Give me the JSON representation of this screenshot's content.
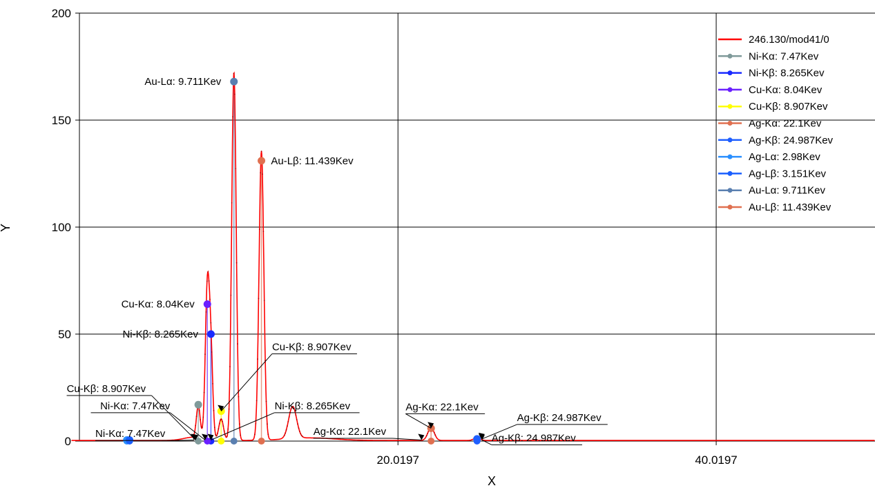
{
  "chart_data": {
    "type": "line",
    "xlabel": "X",
    "ylabel": "Y",
    "xlim": [
      0,
      50
    ],
    "ylim": [
      0,
      200
    ],
    "x_ticks": [
      {
        "value": 20.0197,
        "label": "20.0197"
      },
      {
        "value": 40.0197,
        "label": "40.0197"
      }
    ],
    "y_ticks": [
      {
        "value": 0,
        "label": "0"
      },
      {
        "value": 50,
        "label": "50"
      },
      {
        "value": 100,
        "label": "100"
      },
      {
        "value": 150,
        "label": "150"
      },
      {
        "value": 200,
        "label": "200"
      }
    ],
    "grid": true,
    "legend_position": "top-right",
    "spectrum": {
      "name": "246.130/mod41/0",
      "color": "#ff0000",
      "baseline": 0.3,
      "peaks": [
        {
          "center": 7.15,
          "height": 1.5,
          "width": 0.6
        },
        {
          "center": 7.47,
          "height": 15,
          "width": 0.12
        },
        {
          "center": 8.04,
          "height": 70,
          "width": 0.13
        },
        {
          "center": 8.265,
          "height": 38,
          "width": 0.12
        },
        {
          "center": 8.907,
          "height": 10,
          "width": 0.15
        },
        {
          "center": 9.711,
          "height": 172,
          "width": 0.14
        },
        {
          "center": 11.439,
          "height": 135,
          "width": 0.15
        },
        {
          "center": 13.4,
          "height": 15,
          "width": 0.25
        },
        {
          "center": 14.5,
          "height": 1.2,
          "width": 1.5
        },
        {
          "center": 22.1,
          "height": 6,
          "width": 0.2
        },
        {
          "center": 24.987,
          "height": 1.2,
          "width": 0.2
        }
      ]
    },
    "series": [
      {
        "name": "246.130/mod41/0",
        "color": "#ff0000",
        "marker": false
      },
      {
        "name": "Ni-Kα: 7.47Kev",
        "color": "#7f9a9a",
        "marker": true
      },
      {
        "name": "Ni-Kβ: 8.265Kev",
        "color": "#1a2aff",
        "marker": true
      },
      {
        "name": "Cu-Kα: 8.04Kev",
        "color": "#6a1fff",
        "marker": true
      },
      {
        "name": "Cu-Kβ: 8.907Kev",
        "color": "#ffff00",
        "marker": true
      },
      {
        "name": "Ag-Kα: 22.1Kev",
        "color": "#e07050",
        "marker": true
      },
      {
        "name": "Ag-Kβ: 24.987Kev",
        "color": "#1f5fff",
        "marker": true
      },
      {
        "name": "Ag-Lα: 2.98Kev",
        "color": "#2a8fff",
        "marker": true
      },
      {
        "name": "Ag-Lβ: 3.151Kev",
        "color": "#1a5fff",
        "marker": true
      },
      {
        "name": "Au-Lα: 9.711Kev",
        "color": "#5a7fb0",
        "marker": true
      },
      {
        "name": "Au-Lβ: 11.439Kev",
        "color": "#e07050",
        "marker": true
      }
    ],
    "element_lines": [
      {
        "name": "Ni-Kα",
        "energy": 7.47,
        "y": 17,
        "color": "#7f9a9a"
      },
      {
        "name": "Ni-Kβ",
        "energy": 8.265,
        "y": 50,
        "color": "#1a2aff"
      },
      {
        "name": "Cu-Kα",
        "energy": 8.04,
        "y": 64,
        "color": "#6a1fff"
      },
      {
        "name": "Cu-Kβ",
        "energy": 8.907,
        "y": 14,
        "color": "#ffff00"
      },
      {
        "name": "Ag-Kα",
        "energy": 22.1,
        "y": 6,
        "color": "#e07050"
      },
      {
        "name": "Ag-Kβ",
        "energy": 24.987,
        "y": 1,
        "color": "#1f5fff"
      },
      {
        "name": "Ag-Lα",
        "energy": 2.98,
        "y": 0.5,
        "color": "#2a8fff"
      },
      {
        "name": "Ag-Lβ",
        "energy": 3.151,
        "y": 0.5,
        "color": "#1a5fff"
      },
      {
        "name": "Au-Lα",
        "energy": 9.711,
        "y": 168,
        "color": "#5a7fb0"
      },
      {
        "name": "Au-Lβ",
        "energy": 11.439,
        "y": 131,
        "color": "#e07050"
      }
    ],
    "annotations": [
      {
        "text": "Au-Lα: 9.711Kev",
        "x": 9.711,
        "y": 168,
        "dx": -0.8,
        "dy": 0,
        "anchor": "end",
        "leader": false
      },
      {
        "text": "Au-Lβ: 11.439Kev",
        "x": 11.439,
        "y": 131,
        "dx": 0.6,
        "dy": 0,
        "anchor": "start",
        "leader": false
      },
      {
        "text": "Cu-Kα: 8.04Kev",
        "x": 8.04,
        "y": 64,
        "dx": -0.8,
        "dy": 0,
        "anchor": "end",
        "leader": false
      },
      {
        "text": "Ni-Kβ: 8.265Kev",
        "x": 8.265,
        "y": 50,
        "dx": -0.8,
        "dy": 0,
        "anchor": "end",
        "leader": false
      },
      {
        "text": "Cu-Kβ: 8.907Kev",
        "x": 8.907,
        "y": 14,
        "dx": 3.2,
        "dy": 30,
        "anchor": "start",
        "leader": true
      },
      {
        "text": "Ni-Kβ: 8.265Kev",
        "x": 8.265,
        "y": 0.5,
        "dx": 4.0,
        "dy": 16,
        "anchor": "start",
        "leader": true
      },
      {
        "text": "Cu-Kβ: 8.907Kev",
        "x": 7.3,
        "y": 0.5,
        "dx": -8.1,
        "dy": 24,
        "anchor": "start",
        "leader": true
      },
      {
        "text": "Ni-Kα: 7.47Kev",
        "x": 7.9,
        "y": 0.5,
        "dx": -2.2,
        "dy": 16,
        "anchor": "end",
        "leader": true
      },
      {
        "text": "Ni-Kα: 7.47Kev",
        "x": 7.2,
        "y": 0.5,
        "dx": -6.2,
        "dy": 3,
        "anchor": "start",
        "leader": true
      },
      {
        "text": "Ag-Kα: 22.1Kev",
        "x": 22.1,
        "y": 6,
        "dx": -1.6,
        "dy": 10,
        "anchor": "start",
        "leader": true
      },
      {
        "text": "Ag-Kα: 22.1Kev",
        "x": 21.5,
        "y": 0.5,
        "dx": -6.8,
        "dy": 4,
        "anchor": "start",
        "leader": true
      },
      {
        "text": "Ag-Kβ: 24.987Kev",
        "x": 25.3,
        "y": 1,
        "dx": 2.2,
        "dy": 10,
        "anchor": "start",
        "leader": true
      },
      {
        "text": "Ag-Kβ: 24.987Kev",
        "x": 25.3,
        "y": 0.5,
        "dx": 0.6,
        "dy": 1,
        "anchor": "start",
        "leader": true
      }
    ]
  }
}
